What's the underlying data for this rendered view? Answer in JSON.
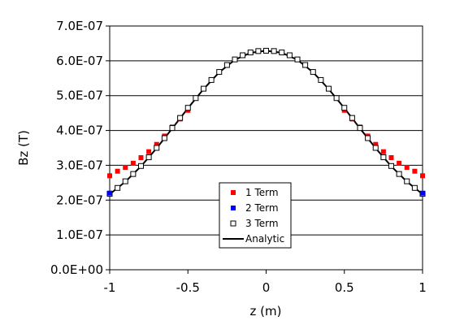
{
  "chart_data": {
    "type": "scatter",
    "title": "",
    "xlabel": "z (m)",
    "ylabel": "Bz (T)",
    "xlim": [
      -1,
      1
    ],
    "ylim": [
      0,
      7e-07
    ],
    "x_ticks": [
      -1,
      -0.5,
      0,
      0.5,
      1
    ],
    "x_tick_labels": [
      "-1",
      "-0.5",
      "0",
      "0.5",
      "1"
    ],
    "y_ticks": [
      0,
      1e-07,
      2e-07,
      3e-07,
      4e-07,
      5e-07,
      6e-07,
      7e-07
    ],
    "y_tick_labels": [
      "0.0E+00",
      "1.0E-07",
      "2.0E-07",
      "3.0E-07",
      "4.0E-07",
      "5.0E-07",
      "6.0E-07",
      "7.0E-07"
    ],
    "grid": "horizontal",
    "legend_position": "bottom-center",
    "series": [
      {
        "name": "1 Term",
        "marker": "filled-square",
        "color": "#ff0000",
        "x": [
          -1.0,
          -0.95,
          -0.9,
          -0.85,
          -0.8,
          -0.75,
          -0.7,
          -0.65,
          -0.6,
          -0.55,
          -0.5,
          0.5,
          0.55,
          0.6,
          0.65,
          0.7,
          0.75,
          0.8,
          0.85,
          0.9,
          0.95,
          1.0
        ],
        "y": [
          2.7e-07,
          2.83e-07,
          2.94e-07,
          3.06e-07,
          3.22e-07,
          3.39e-07,
          3.6e-07,
          3.84e-07,
          4.1e-07,
          4.33e-07,
          4.58e-07,
          4.58e-07,
          4.33e-07,
          4.1e-07,
          3.84e-07,
          3.6e-07,
          3.39e-07,
          3.22e-07,
          3.06e-07,
          2.94e-07,
          2.83e-07,
          2.7e-07
        ]
      },
      {
        "name": "2 Term",
        "marker": "filled-square",
        "color": "#0000ff",
        "x": [
          -1.0,
          1.0
        ],
        "y": [
          2.2e-07,
          2.2e-07
        ]
      },
      {
        "name": "3 Term",
        "marker": "open-square",
        "color": "#000000",
        "x": [
          -1.0,
          -0.95,
          -0.9,
          -0.85,
          -0.8,
          -0.75,
          -0.7,
          -0.65,
          -0.6,
          -0.55,
          -0.5,
          -0.45,
          -0.4,
          -0.35,
          -0.3,
          -0.25,
          -0.2,
          -0.15,
          -0.1,
          -0.05,
          0.0,
          0.05,
          0.1,
          0.15,
          0.2,
          0.25,
          0.3,
          0.35,
          0.4,
          0.45,
          0.5,
          0.55,
          0.6,
          0.65,
          0.7,
          0.75,
          0.8,
          0.85,
          0.9,
          0.95,
          1.0
        ],
        "y": [
          2.18e-07,
          2.35e-07,
          2.54e-07,
          2.75e-07,
          2.98e-07,
          3.23e-07,
          3.5e-07,
          3.78e-07,
          4.07e-07,
          4.36e-07,
          4.65e-07,
          4.93e-07,
          5.2e-07,
          5.45e-07,
          5.68e-07,
          5.88e-07,
          6.04e-07,
          6.16e-07,
          6.24e-07,
          6.28e-07,
          6.29e-07,
          6.28e-07,
          6.24e-07,
          6.16e-07,
          6.04e-07,
          5.88e-07,
          5.68e-07,
          5.45e-07,
          5.2e-07,
          4.93e-07,
          4.65e-07,
          4.36e-07,
          4.07e-07,
          3.78e-07,
          3.5e-07,
          3.23e-07,
          2.98e-07,
          2.75e-07,
          2.54e-07,
          2.35e-07,
          2.18e-07
        ]
      },
      {
        "name": "Analytic",
        "marker": "line",
        "color": "#000000",
        "x": [
          -1.0,
          -0.9,
          -0.8,
          -0.7,
          -0.6,
          -0.5,
          -0.4,
          -0.3,
          -0.2,
          -0.1,
          0.0,
          0.1,
          0.2,
          0.3,
          0.4,
          0.5,
          0.6,
          0.7,
          0.8,
          0.9,
          1.0
        ],
        "y": [
          2.17e-07,
          2.53e-07,
          2.97e-07,
          3.49e-07,
          4.06e-07,
          4.64e-07,
          5.19e-07,
          5.67e-07,
          6.03e-07,
          6.23e-07,
          6.29e-07,
          6.23e-07,
          6.03e-07,
          5.67e-07,
          5.19e-07,
          4.64e-07,
          4.06e-07,
          3.49e-07,
          2.97e-07,
          2.53e-07,
          2.17e-07
        ]
      }
    ]
  }
}
